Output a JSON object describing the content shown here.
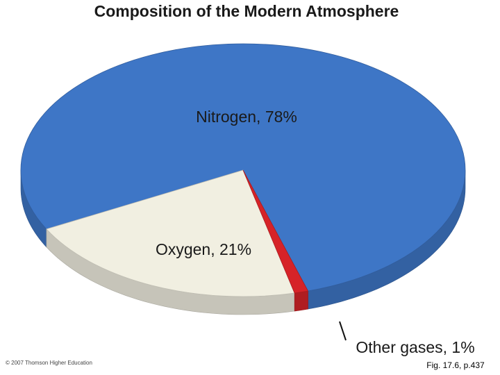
{
  "chart_data": {
    "type": "pie3d",
    "title": "Composition of the Modern Atmosphere",
    "values": [
      78,
      21,
      1
    ],
    "value_labels": [
      "Nitrogen, 78%",
      "Oxygen, 21%",
      "Other gases, 1%"
    ],
    "colors": [
      "#3e76c6",
      "#f1efe1",
      "#d62328"
    ],
    "credit": "© 2007 Thomson Higher Education",
    "figure_label": "Fig. 17.6, p.437"
  }
}
